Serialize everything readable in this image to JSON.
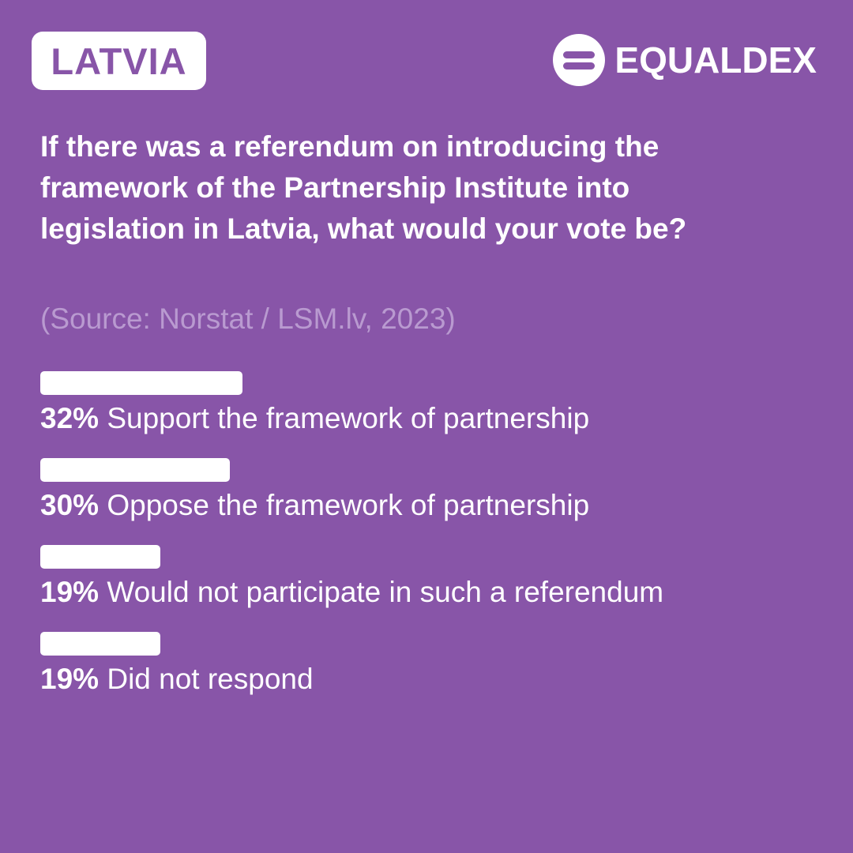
{
  "header": {
    "country": "LATVIA",
    "brand": "EQUALDEX",
    "brand_icon": "equaldex-logo-icon"
  },
  "question": "If there was a referendum on introducing the framework of the Partnership Institute into legislation in Latvia, what would your vote be?",
  "source": "(Source: Norstat / LSM.lv, 2023)",
  "colors": {
    "background": "#8855a8",
    "bar": "#ffffff",
    "source_text": "#b99ad0"
  },
  "chart_data": {
    "type": "bar",
    "orientation": "horizontal",
    "categories": [
      "Support the framework of partnership",
      "Oppose the framework of partnership",
      "Would not participate in such a referendum",
      "Did not respond"
    ],
    "values": [
      32,
      30,
      19,
      19
    ],
    "value_labels": [
      "32%",
      "30%",
      "19%",
      "19%"
    ],
    "unit": "%",
    "xlim": [
      0,
      100
    ],
    "grid": false,
    "legend": "none"
  }
}
